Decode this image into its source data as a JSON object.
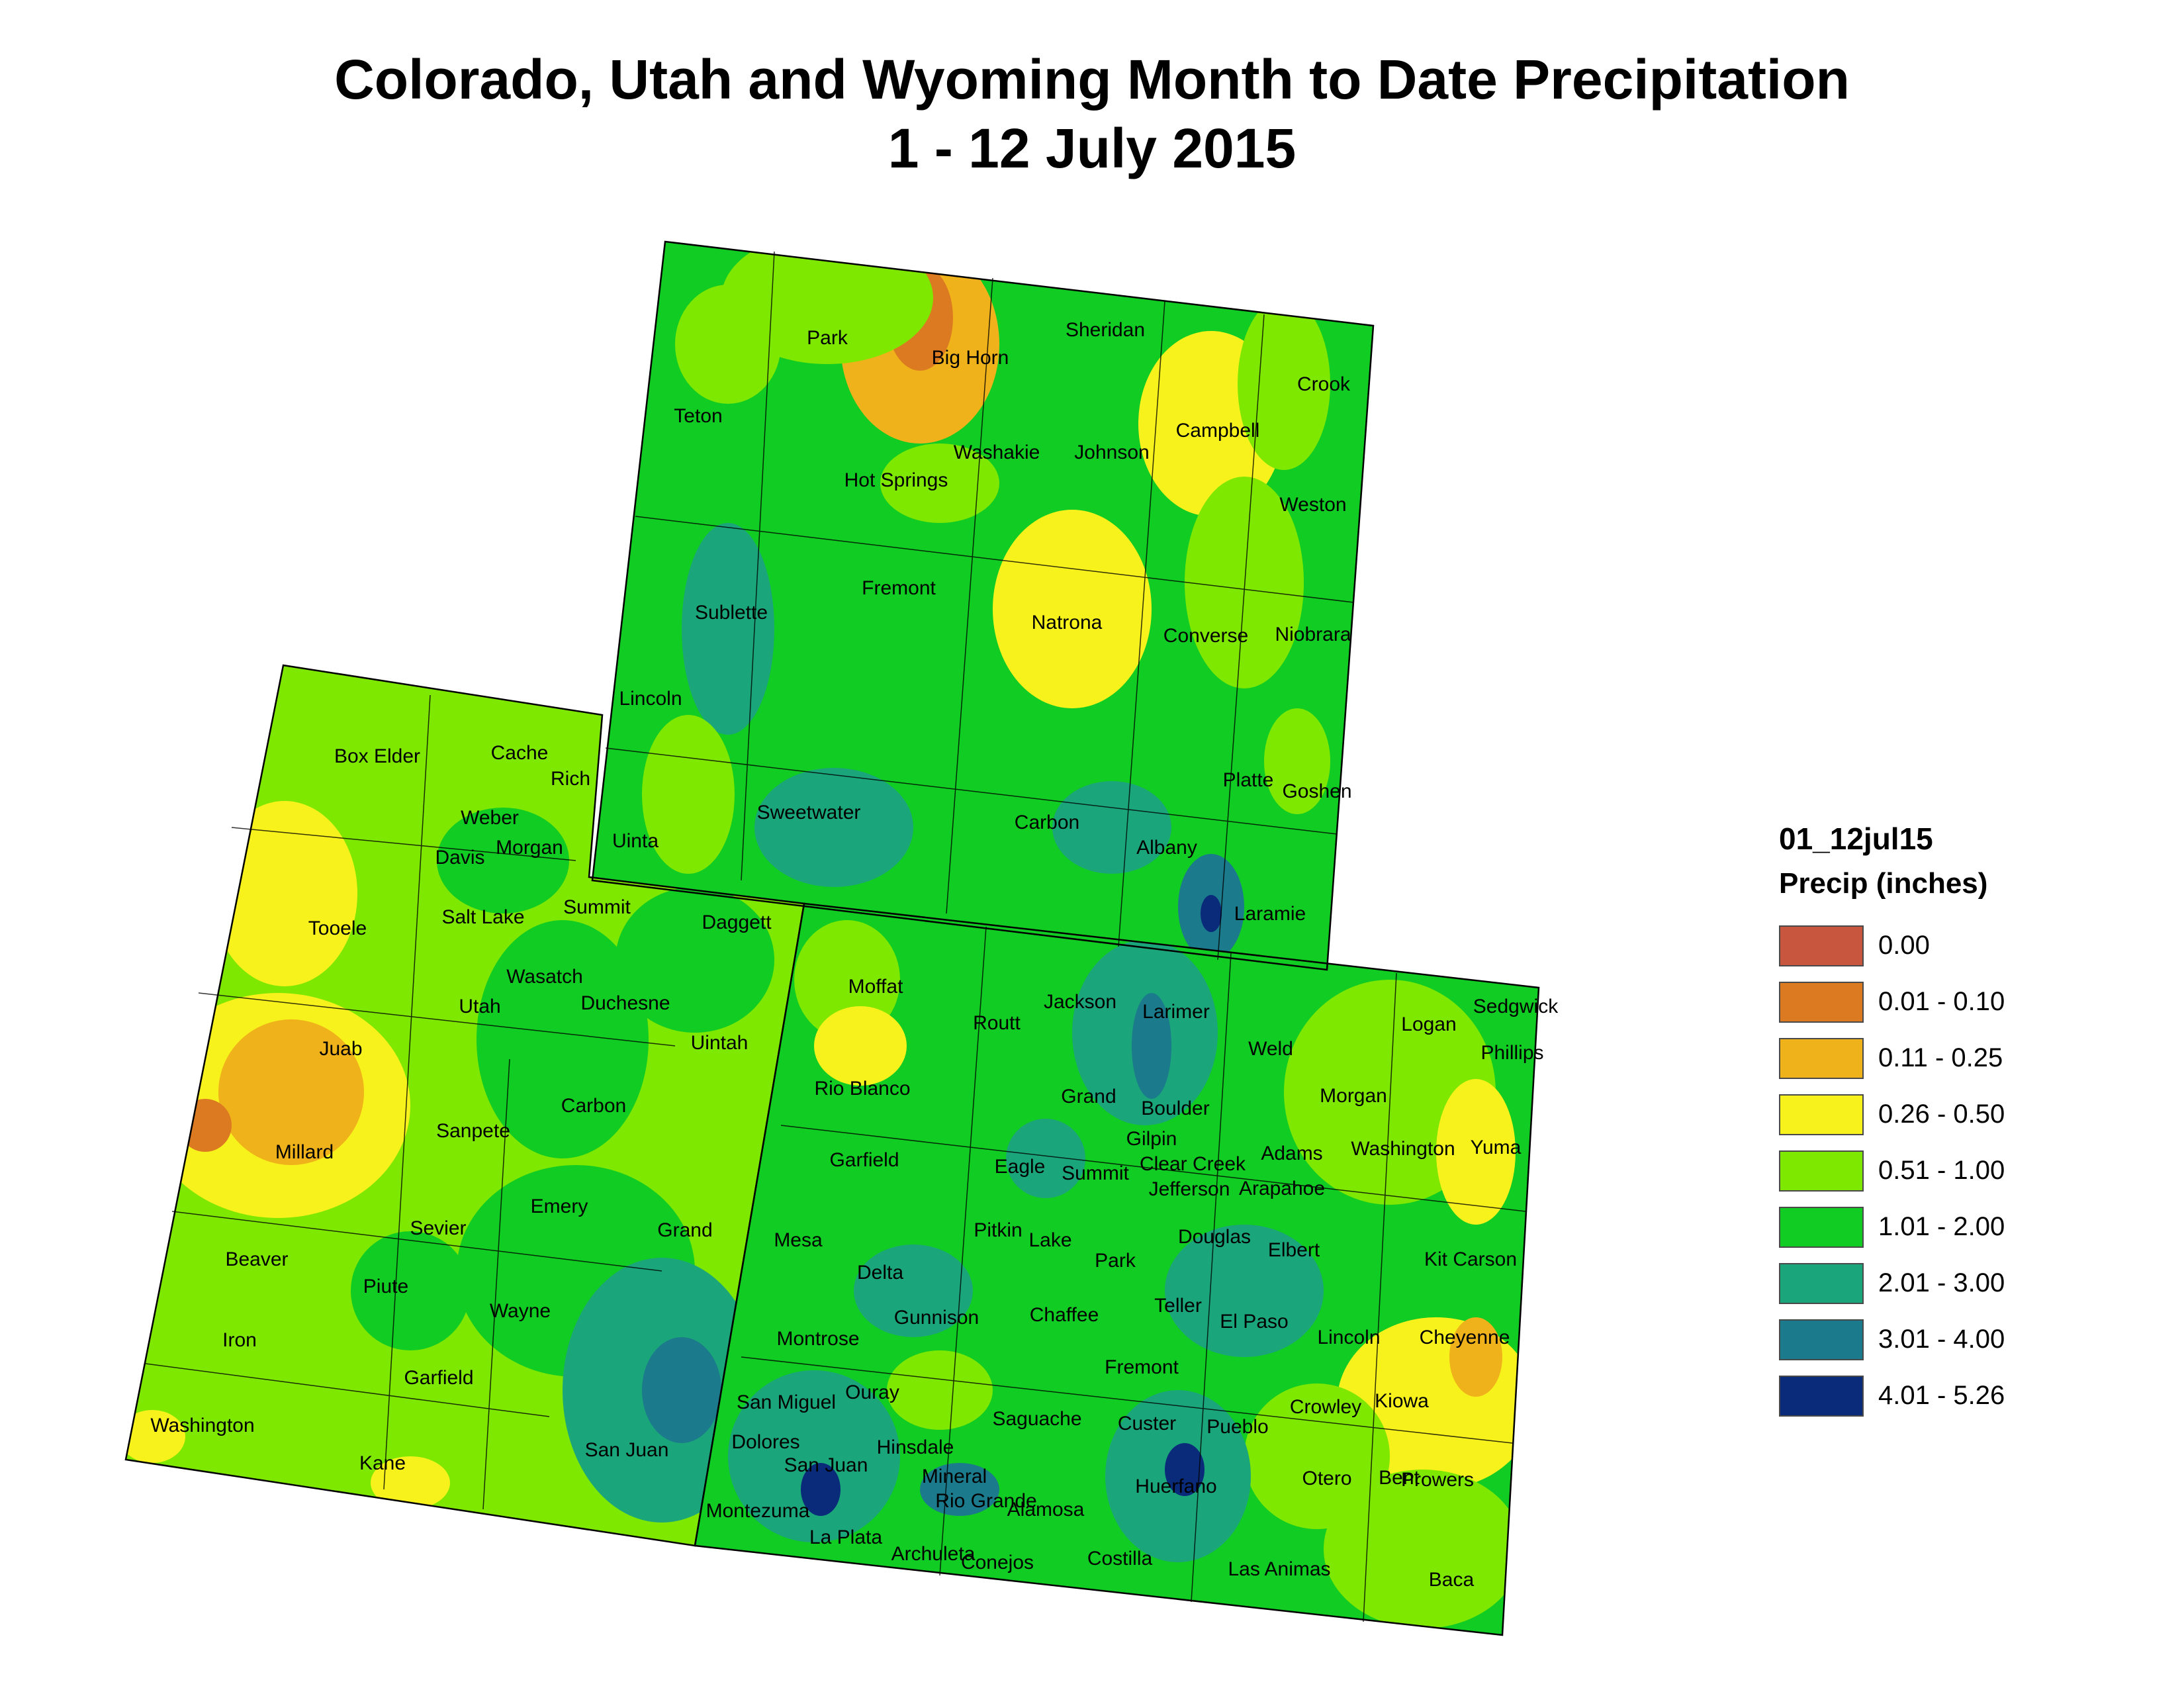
{
  "title": {
    "line1": "Colorado, Utah and Wyoming Month to Date Precipitation",
    "line2": "1 - 12 July 2015"
  },
  "legend": {
    "layer_name": "01_12jul15",
    "field_label": "Precip (inches)",
    "classes": [
      {
        "label": "0.00",
        "color": "#c8553d"
      },
      {
        "label": "0.01 - 0.10",
        "color": "#dc7a22"
      },
      {
        "label": "0.11 - 0.25",
        "color": "#efb21a"
      },
      {
        "label": "0.26 - 0.50",
        "color": "#f8f21c"
      },
      {
        "label": "0.51 - 1.00",
        "color": "#7ee800"
      },
      {
        "label": "1.01 - 2.00",
        "color": "#11cc22"
      },
      {
        "label": "2.01 - 3.00",
        "color": "#1aa67a"
      },
      {
        "label": "3.01 - 4.00",
        "color": "#1b7a8c"
      },
      {
        "label": "4.01 - 5.26",
        "color": "#0a2a7a"
      }
    ]
  },
  "counties": [
    {
      "name": "Park"
    },
    {
      "name": "Big Horn"
    },
    {
      "name": "Sheridan"
    },
    {
      "name": "Crook"
    },
    {
      "name": "Teton"
    },
    {
      "name": "Washakie"
    },
    {
      "name": "Johnson"
    },
    {
      "name": "Campbell"
    },
    {
      "name": "Hot Springs"
    },
    {
      "name": "Weston"
    },
    {
      "name": "Fremont"
    },
    {
      "name": "Sublette"
    },
    {
      "name": "Natrona"
    },
    {
      "name": "Converse"
    },
    {
      "name": "Niobrara"
    },
    {
      "name": "Lincoln"
    },
    {
      "name": "Sweetwater"
    },
    {
      "name": "Carbon"
    },
    {
      "name": "Platte"
    },
    {
      "name": "Goshen"
    },
    {
      "name": "Albany"
    },
    {
      "name": "Uinta"
    },
    {
      "name": "Laramie"
    },
    {
      "name": "Box Elder"
    },
    {
      "name": "Cache"
    },
    {
      "name": "Rich"
    },
    {
      "name": "Weber"
    },
    {
      "name": "Davis"
    },
    {
      "name": "Morgan"
    },
    {
      "name": "Tooele"
    },
    {
      "name": "Salt Lake"
    },
    {
      "name": "Summit"
    },
    {
      "name": "Daggett"
    },
    {
      "name": "Wasatch"
    },
    {
      "name": "Utah"
    },
    {
      "name": "Duchesne"
    },
    {
      "name": "Uintah"
    },
    {
      "name": "Juab"
    },
    {
      "name": "Sanpete"
    },
    {
      "name": "Carbon"
    },
    {
      "name": "Millard"
    },
    {
      "name": "Emery"
    },
    {
      "name": "Sevier"
    },
    {
      "name": "Grand"
    },
    {
      "name": "Beaver"
    },
    {
      "name": "Piute"
    },
    {
      "name": "Wayne"
    },
    {
      "name": "Iron"
    },
    {
      "name": "Garfield"
    },
    {
      "name": "Washington"
    },
    {
      "name": "Kane"
    },
    {
      "name": "San Juan"
    },
    {
      "name": "Moffat"
    },
    {
      "name": "Jackson"
    },
    {
      "name": "Larimer"
    },
    {
      "name": "Logan"
    },
    {
      "name": "Sedgwick"
    },
    {
      "name": "Phillips"
    },
    {
      "name": "Routt"
    },
    {
      "name": "Weld"
    },
    {
      "name": "Rio Blanco"
    },
    {
      "name": "Grand"
    },
    {
      "name": "Morgan"
    },
    {
      "name": "Boulder"
    },
    {
      "name": "Gilpin"
    },
    {
      "name": "Garfield"
    },
    {
      "name": "Eagle"
    },
    {
      "name": "Summit"
    },
    {
      "name": "Clear Creek"
    },
    {
      "name": "Adams"
    },
    {
      "name": "Washington"
    },
    {
      "name": "Yuma"
    },
    {
      "name": "Jefferson"
    },
    {
      "name": "Arapahoe"
    },
    {
      "name": "Mesa"
    },
    {
      "name": "Pitkin"
    },
    {
      "name": "Lake"
    },
    {
      "name": "Douglas"
    },
    {
      "name": "Elbert"
    },
    {
      "name": "Park"
    },
    {
      "name": "Kit Carson"
    },
    {
      "name": "Delta"
    },
    {
      "name": "Teller"
    },
    {
      "name": "Gunnison"
    },
    {
      "name": "Chaffee"
    },
    {
      "name": "El Paso"
    },
    {
      "name": "Lincoln"
    },
    {
      "name": "Cheyenne"
    },
    {
      "name": "Montrose"
    },
    {
      "name": "Fremont"
    },
    {
      "name": "Ouray"
    },
    {
      "name": "San Miguel"
    },
    {
      "name": "Saguache"
    },
    {
      "name": "Custer"
    },
    {
      "name": "Pueblo"
    },
    {
      "name": "Crowley"
    },
    {
      "name": "Kiowa"
    },
    {
      "name": "Dolores"
    },
    {
      "name": "Hinsdale"
    },
    {
      "name": "San Juan"
    },
    {
      "name": "Mineral"
    },
    {
      "name": "Huerfano"
    },
    {
      "name": "Otero"
    },
    {
      "name": "Bent"
    },
    {
      "name": "Prowers"
    },
    {
      "name": "Montezuma"
    },
    {
      "name": "Rio Grande"
    },
    {
      "name": "Alamosa"
    },
    {
      "name": "La Plata"
    },
    {
      "name": "Archuleta"
    },
    {
      "name": "Conejos"
    },
    {
      "name": "Costilla"
    },
    {
      "name": "Las Animas"
    },
    {
      "name": "Baca"
    }
  ]
}
